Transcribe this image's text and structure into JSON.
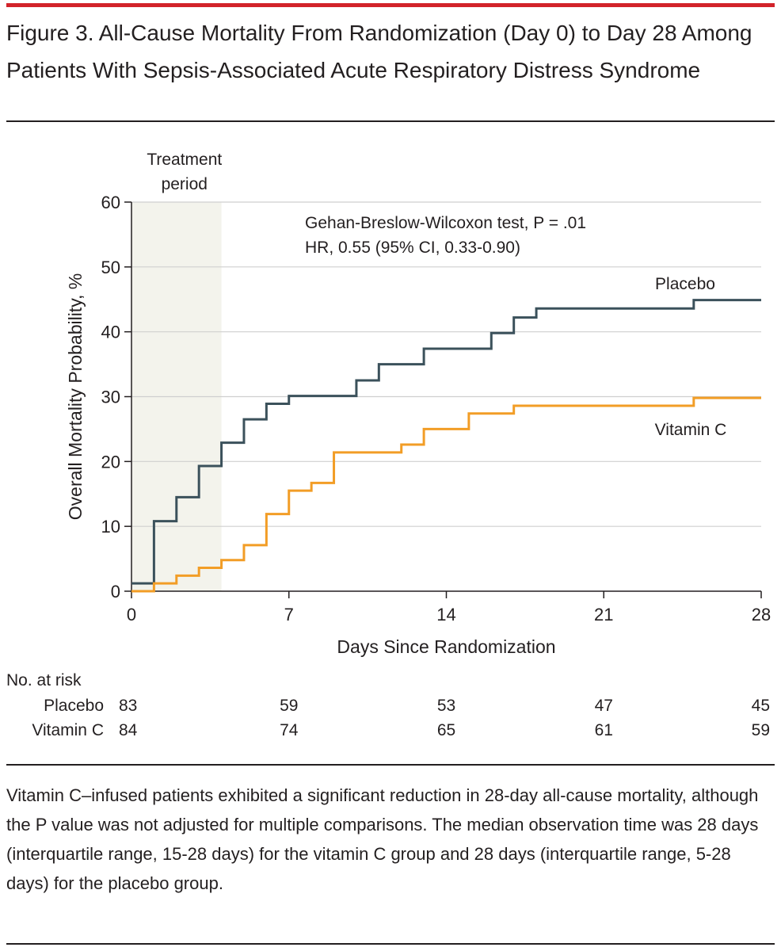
{
  "figure": {
    "title": "Figure 3. All-Cause Mortality From Randomization (Day 0) to Day 28 Among Patients With Sepsis-Associated Acute Respiratory Distress Syndrome",
    "caption": "Vitamin C–infused patients exhibited a significant reduction in 28-day all-cause mortality, although the P value was not adjusted for multiple comparisons. The median observation time was 28 days (interquartile range, 15-28 days) for the vitamin C group and 28 days (interquartile range, 5-28 days) for the placebo group."
  },
  "chart_data": {
    "type": "line",
    "step": true,
    "xlabel": "Days Since Randomization",
    "ylabel": "Overall Mortality Probability, %",
    "xlim": [
      0,
      28
    ],
    "ylim": [
      0,
      60
    ],
    "xticks": [
      0,
      7,
      14,
      21,
      28
    ],
    "yticks": [
      0,
      10,
      20,
      30,
      40,
      50,
      60
    ],
    "grid": "horizontal",
    "shaded_region": {
      "label": "Treatment period",
      "x_start": 0,
      "x_end": 4
    },
    "annotation": {
      "line1": "Gehan-Breslow-Wilcoxon test, P = .01",
      "line2": "HR, 0.55 (95% CI, 0.33-0.90)"
    },
    "series": [
      {
        "name": "Placebo",
        "color": "#3b515b",
        "x": [
          0,
          1,
          2,
          3,
          4,
          5,
          6,
          7,
          10,
          11,
          13,
          16,
          17,
          18,
          25,
          28
        ],
        "y": [
          1.2,
          10.8,
          14.5,
          19.3,
          22.9,
          26.5,
          28.9,
          30.1,
          32.5,
          35.0,
          37.4,
          39.8,
          42.2,
          43.6,
          44.9,
          44.9
        ]
      },
      {
        "name": "Vitamin C",
        "color": "#f29d26",
        "x": [
          0,
          1,
          2,
          3,
          4,
          5,
          6,
          7,
          8,
          9,
          12,
          13,
          15,
          17,
          25,
          28
        ],
        "y": [
          0,
          1.2,
          2.4,
          3.6,
          4.8,
          7.1,
          11.9,
          15.5,
          16.7,
          21.4,
          22.6,
          25.0,
          27.4,
          28.6,
          29.8,
          29.8
        ]
      }
    ],
    "risk_table": {
      "header": "No. at risk",
      "timepoints": [
        0,
        7,
        14,
        21,
        28
      ],
      "rows": [
        {
          "label": "Placebo",
          "values": [
            "83",
            "59",
            "53",
            "47",
            "45"
          ]
        },
        {
          "label": "Vitamin C",
          "values": [
            "84",
            "74",
            "65",
            "61",
            "59"
          ]
        }
      ]
    }
  }
}
